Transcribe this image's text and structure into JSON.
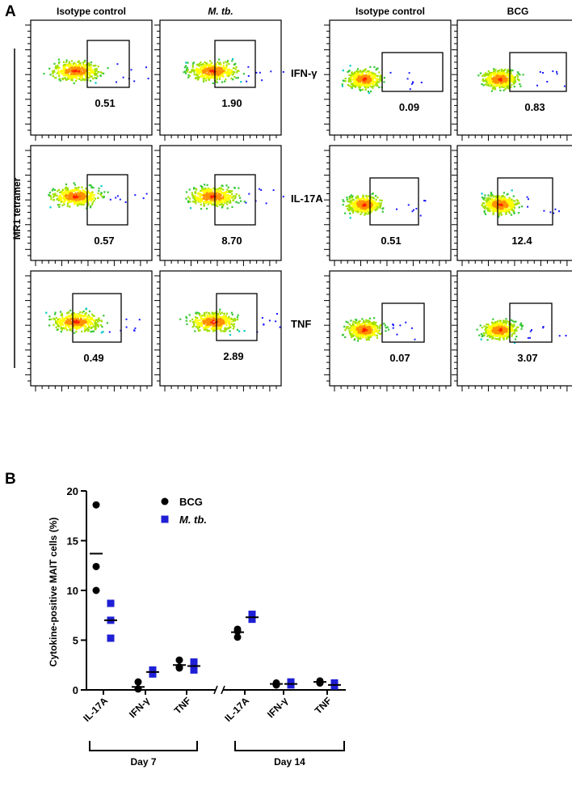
{
  "panel_a": {
    "label": "A",
    "ylabel": "MR1 tetramer",
    "left_group": {
      "columns": [
        "Isotype control",
        "M. tb."
      ],
      "rows": [
        {
          "cytokine": "IFN-γ",
          "values": [
            "0.51",
            "1.90"
          ]
        },
        {
          "cytokine": "IL-17A",
          "values": [
            "0.57",
            "8.70"
          ]
        },
        {
          "cytokine": "TNF",
          "values": [
            "0.49",
            "2.89"
          ]
        }
      ]
    },
    "right_group": {
      "columns": [
        "Isotype control",
        "BCG"
      ],
      "rows": [
        {
          "cytokine": "IFN-γ",
          "values": [
            "0.09",
            "0.83"
          ]
        },
        {
          "cytokine": "IL-17A",
          "values": [
            "0.51",
            "12.4"
          ]
        },
        {
          "cytokine": "TNF",
          "values": [
            "0.07",
            "3.07"
          ]
        }
      ]
    }
  },
  "panel_b": {
    "label": "B",
    "colors": {
      "bcg": "#000000",
      "mtb": "#1f1fd6"
    },
    "chart_data": {
      "type": "scatter",
      "ylabel": "Cytokine-positive MAIT cells (%)",
      "ylim": [
        0,
        20
      ],
      "yticks": [
        "0",
        "5",
        "10",
        "15",
        "20"
      ],
      "categories": [
        "IL-17A",
        "IFN-γ",
        "TNF",
        "IL-17A",
        "IFN-γ",
        "TNF"
      ],
      "groups": [
        {
          "label": "Day 7",
          "categories": [
            0,
            1,
            2
          ]
        },
        {
          "label": "Day 14",
          "categories": [
            3,
            4,
            5
          ]
        }
      ],
      "legend": {
        "position": "top-center",
        "bcg": "BCG",
        "mtb": "M. tb."
      },
      "series": [
        {
          "name": "BCG",
          "marker": "circle",
          "points": [
            [
              18.6,
              12.4,
              10.0
            ],
            [
              0.8,
              0.1,
              0.1
            ],
            [
              3.0,
              2.2,
              2.3
            ],
            [
              6.1,
              5.3,
              5.9
            ],
            [
              0.7,
              0.5,
              0.5
            ],
            [
              0.9,
              0.7,
              0.7
            ]
          ],
          "means": [
            13.7,
            0.3,
            2.5,
            5.8,
            0.6,
            0.8
          ]
        },
        {
          "name": "M. tb.",
          "marker": "square",
          "points": [
            [
              8.7,
              7.0,
              5.2
            ],
            [
              2.0,
              1.6,
              1.7
            ],
            [
              2.8,
              2.4,
              2.0
            ],
            [
              7.6,
              7.3,
              7.1
            ],
            [
              0.8,
              0.6,
              0.5
            ],
            [
              0.7,
              0.5,
              0.4
            ]
          ],
          "means": [
            7.0,
            1.8,
            2.4,
            7.3,
            0.6,
            0.5
          ]
        }
      ]
    }
  }
}
